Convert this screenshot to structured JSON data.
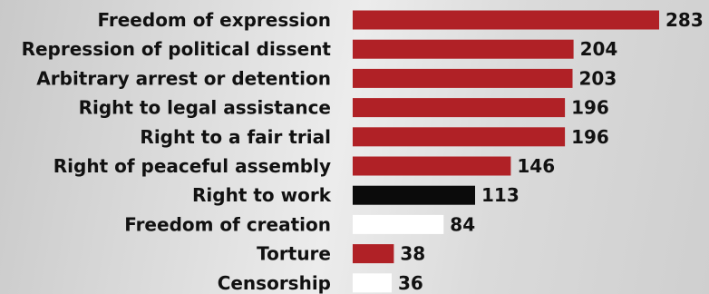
{
  "chart_data": {
    "type": "bar",
    "orientation": "horizontal",
    "categories": [
      "Freedom of expression",
      "Repression of political dissent",
      "Arbitrary arrest or detention",
      "Right to legal assistance",
      "Right to a fair trial",
      "Right of peaceful assembly",
      "Right to work",
      "Freedom of creation",
      "Torture",
      "Censorship"
    ],
    "values": [
      283,
      204,
      203,
      196,
      196,
      146,
      113,
      84,
      38,
      36
    ],
    "bar_colors": [
      "#b02126",
      "#b02126",
      "#b02126",
      "#b02126",
      "#b02126",
      "#b02126",
      "#0b0b0b",
      "#ffffff",
      "#b02126",
      "#ffffff"
    ],
    "data_labels": [
      "283",
      "204",
      "203",
      "196",
      "196",
      "146",
      "113",
      "84",
      "38",
      "36"
    ],
    "title": "",
    "xlabel": "",
    "ylabel": "",
    "xlim": [
      0,
      283
    ],
    "grid": false,
    "legend": "none"
  }
}
